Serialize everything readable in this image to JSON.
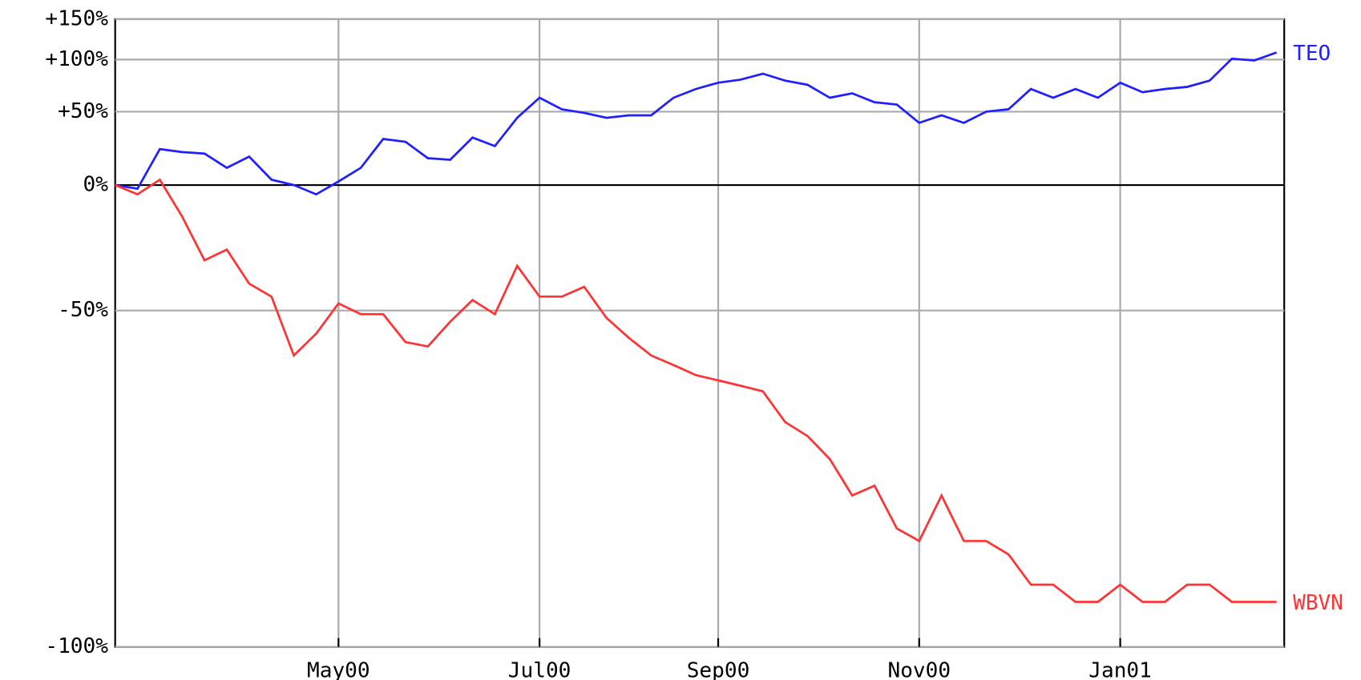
{
  "chart_data": {
    "type": "line",
    "categories": [
      null,
      null,
      null,
      null,
      null,
      null,
      null,
      null,
      null,
      null,
      "May00",
      null,
      null,
      null,
      null,
      null,
      null,
      null,
      null,
      "Jul00",
      null,
      null,
      null,
      null,
      null,
      null,
      null,
      "Sep00",
      null,
      null,
      null,
      null,
      null,
      null,
      null,
      null,
      "Nov00",
      null,
      null,
      null,
      null,
      null,
      null,
      null,
      null,
      "Jan01",
      null,
      null,
      null,
      null,
      null,
      null,
      null
    ],
    "series": [
      {
        "name": "TEO",
        "color": "#1f1fff",
        "values": [
          0,
          -2,
          22,
          20,
          19,
          10,
          17,
          3,
          0,
          -5,
          2,
          10,
          29,
          27,
          16,
          15,
          30,
          24,
          45,
          62,
          52,
          49,
          45,
          47,
          47,
          62,
          70,
          76,
          79,
          85,
          78,
          74,
          62,
          66,
          58,
          56,
          41,
          47,
          41,
          50,
          52,
          70,
          62,
          70,
          62,
          76,
          67,
          70,
          72,
          78,
          101,
          99,
          108
        ]
      },
      {
        "name": "WBVN",
        "color": "#ff3333",
        "values": [
          0,
          -5,
          3,
          -16,
          -34,
          -30,
          -42,
          -46,
          -61,
          -56,
          -48,
          -51,
          -51,
          -58,
          -59,
          -53,
          -47,
          -51,
          -36,
          -46,
          -46,
          -43,
          -52,
          -57,
          -61,
          -63,
          -65,
          -66,
          -67,
          -68,
          -73,
          -75,
          -78,
          -82,
          -81,
          -85,
          -86,
          -82,
          -86,
          -86,
          -87,
          -89,
          -89,
          -90,
          -90,
          -89,
          -90,
          -90,
          -89,
          -89,
          -90,
          -90,
          -90
        ]
      }
    ],
    "yscale": "log",
    "ylim": [
      -92.2,
      150
    ],
    "yticks": [
      {
        "value": 150,
        "label": "+150%"
      },
      {
        "value": 100,
        "label": "+100%"
      },
      {
        "value": 50,
        "label": "+50%"
      },
      {
        "value": 0,
        "label": "0%"
      },
      {
        "value": -50,
        "label": "-50%"
      },
      {
        "value": -100,
        "label": "-100%"
      }
    ],
    "grid": true
  }
}
